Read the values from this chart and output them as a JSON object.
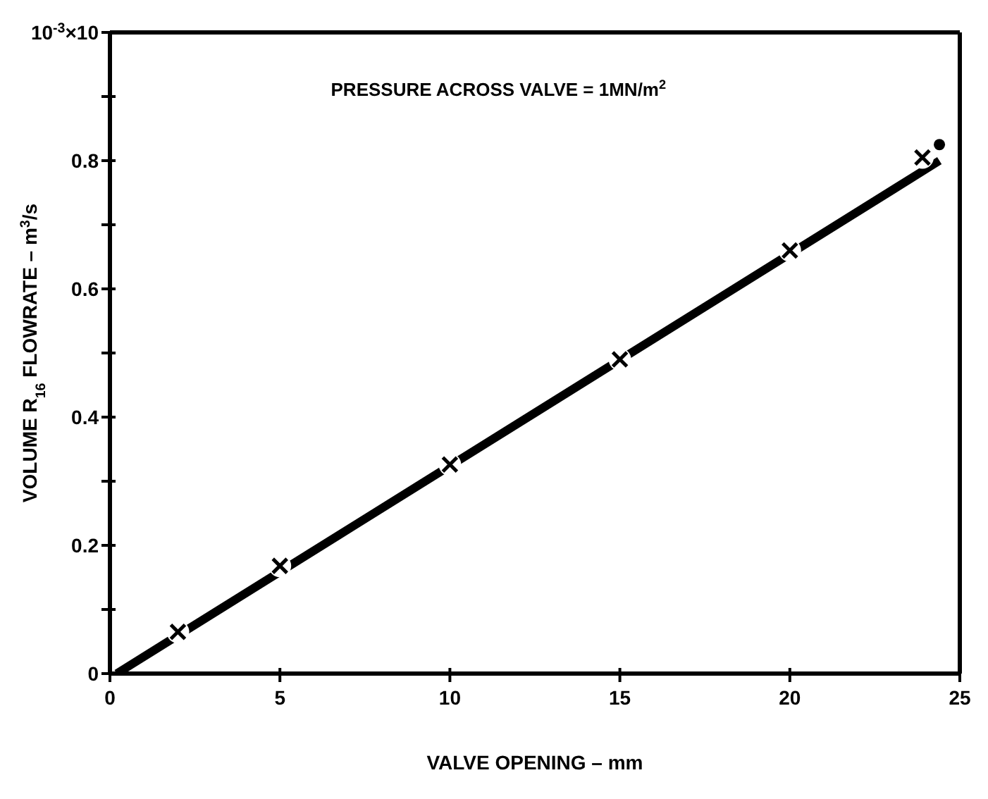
{
  "chart_data": {
    "type": "line",
    "xlabel": "VALVE OPENING – mm",
    "ylabel": "VOLUME R$_{16}$ FLOWRATE – m$^{3}$/s",
    "annotations": [
      "PRESSURE ACROSS VALVE = 1MN/m$^{2}$"
    ],
    "xlim": [
      0,
      25
    ],
    "xticks": [
      0,
      5,
      10,
      15,
      20,
      25
    ],
    "ylim": [
      0,
      1
    ],
    "yticks": [
      0,
      {
        "value": 0.1,
        "label": null
      },
      0.2,
      {
        "value": 0.3,
        "label": null
      },
      0.4,
      {
        "value": 0.5,
        "label": null
      },
      0.6,
      {
        "value": 0.7,
        "label": null
      },
      0.8,
      {
        "value": 0.9,
        "label": null
      },
      {
        "value": 1,
        "label": "10$^{-3}$×10"
      }
    ],
    "grid": false,
    "series": [
      {
        "x": [
          0.2,
          24.4
        ],
        "values": [
          0,
          0.8
        ],
        "color": "#000000",
        "marker": "none"
      },
      {
        "type": "scatter",
        "x": [
          2,
          5,
          10,
          15,
          20,
          23.9
        ],
        "values": [
          0.065,
          0.168,
          0.326,
          0.49,
          0.66,
          0.805
        ],
        "color": "#000000",
        "marker": "cross"
      },
      {
        "type": "scatter",
        "x": [
          24.4
        ],
        "values": [
          0.825
        ],
        "color": "#000000",
        "marker": "circle"
      }
    ]
  }
}
